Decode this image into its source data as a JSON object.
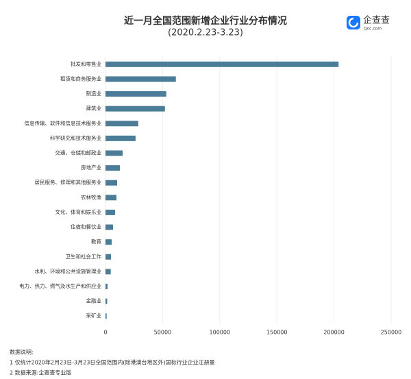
{
  "chart_data": {
    "type": "barh",
    "title": "近一月全国范围新增企业行业分布情况",
    "subtitle": "(2020.2.23-3.23)",
    "categories": [
      "批发和零售业",
      "租赁和商务服务业",
      "制造业",
      "建筑业",
      "信息传输、软件和信息技术服务业",
      "科学研究和技术服务业",
      "交通、仓储和邮政业",
      "房地产业",
      "居民服务、修理和其他服务业",
      "农林牧渔",
      "文化、体育和娱乐业",
      "住宿和餐饮业",
      "教育",
      "卫生和社会工作",
      "水利、环境和公共设施管理业",
      "电力、热力、燃气及水生产和供应业",
      "金融业",
      "采矿业"
    ],
    "values": [
      204000,
      61600,
      53200,
      52000,
      28700,
      26300,
      15000,
      12600,
      10200,
      9600,
      8400,
      6600,
      5400,
      4800,
      4600,
      1800,
      1500,
      1000
    ],
    "color": "#4b7d98",
    "xlim": [
      0,
      250000
    ],
    "xticks": [
      0,
      50000,
      100000,
      150000,
      200000,
      250000
    ],
    "grid": true
  },
  "brand": {
    "name": "企查查",
    "url": "Qcc.com"
  },
  "notes": {
    "heading": "数据说明:",
    "lines": [
      "1 仅统计2020年2月23日-3月23日全国范围内(除港澳台地区外)国标行业企业注册量",
      "2 数据来源:企查查专业版"
    ]
  }
}
